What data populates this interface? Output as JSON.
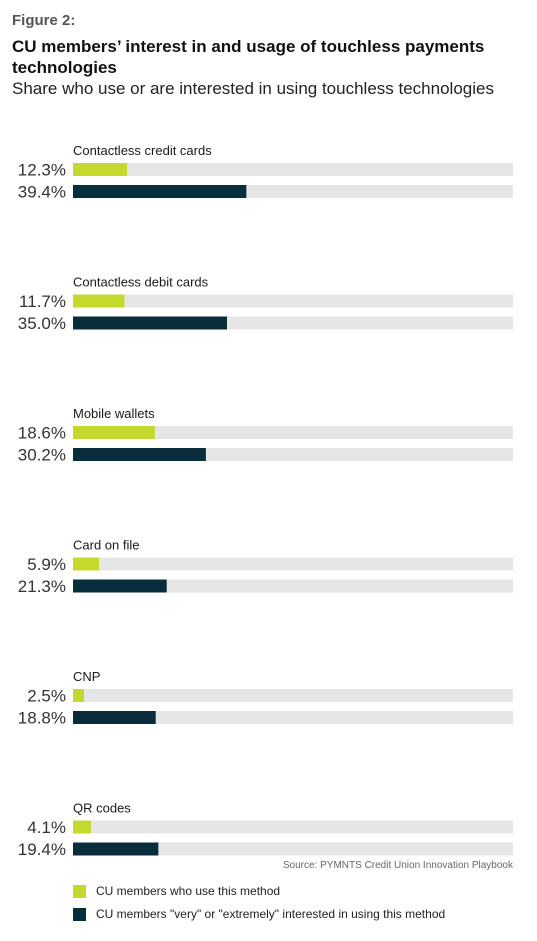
{
  "figure_label": "Figure 2:",
  "title": "CU members’ interest in and usage of touchless payments technologies",
  "subtitle": "Share who use or are interested in using touchless technologies",
  "source": "Source: PYMNTS Credit Union Innovation Playbook",
  "colors": {
    "use": "#c4d82e",
    "interested": "#0a2d3c",
    "track": "#e6e6e6"
  },
  "chart_data": {
    "type": "bar",
    "orientation": "horizontal",
    "xlim": [
      0,
      100
    ],
    "categories": [
      "Contactless credit cards",
      "Contactless debit cards",
      "Mobile wallets",
      "Card on file",
      "CNP",
      "QR codes"
    ],
    "series": [
      {
        "name": "CU members who use this method",
        "values": [
          12.3,
          11.7,
          18.6,
          5.9,
          2.5,
          4.1
        ]
      },
      {
        "name": "CU members \"very\" or \"extremely\" interested in using this method",
        "values": [
          39.4,
          35.0,
          30.2,
          21.3,
          18.8,
          19.4
        ]
      }
    ],
    "value_labels": [
      [
        "12.3%",
        "11.7%",
        "18.6%",
        "5.9%",
        "2.5%",
        "4.1%"
      ],
      [
        "39.4%",
        "35.0%",
        "30.2%",
        "21.3%",
        "18.8%",
        "19.4%"
      ]
    ]
  }
}
